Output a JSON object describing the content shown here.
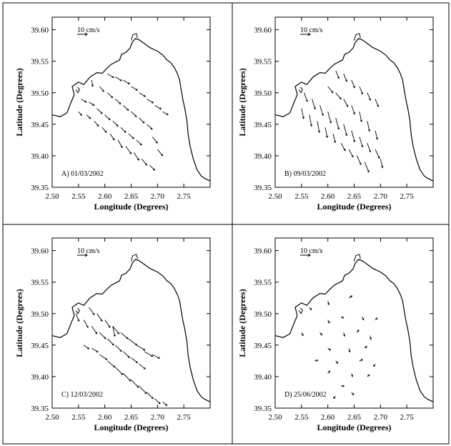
{
  "figure": {
    "panels": [
      {
        "label": "A) 01/03/2002"
      },
      {
        "label": "B) 09/03/2002"
      },
      {
        "label": "C) 12/03/2002"
      },
      {
        "label": "D) 25/06/2002"
      }
    ]
  },
  "chart_data": [
    {
      "type": "quiver",
      "panel_label": "A) 01/03/2002",
      "xlabel": "Longitude (Degrees)",
      "ylabel": "Latitude (Degrees)",
      "xlim": [
        2.5,
        2.8
      ],
      "ylim": [
        39.35,
        39.62
      ],
      "xticks": [
        "2.50",
        "2.55",
        "2.60",
        "2.65",
        "2.70",
        "2.75"
      ],
      "yticks": [
        "39.35",
        "39.40",
        "39.45",
        "39.50",
        "39.55",
        "39.60"
      ],
      "scale_label": "10 cm/s",
      "vectors": [
        {
          "x": 2.605,
          "y": 39.53,
          "u": 0.012,
          "v": -0.006
        },
        {
          "x": 2.62,
          "y": 39.525,
          "u": 0.012,
          "v": -0.006
        },
        {
          "x": 2.635,
          "y": 39.52,
          "u": 0.012,
          "v": -0.006
        },
        {
          "x": 2.65,
          "y": 39.51,
          "u": 0.012,
          "v": -0.006
        },
        {
          "x": 2.665,
          "y": 39.5,
          "u": 0.012,
          "v": -0.006
        },
        {
          "x": 2.68,
          "y": 39.49,
          "u": 0.012,
          "v": -0.006
        },
        {
          "x": 2.695,
          "y": 39.48,
          "u": 0.012,
          "v": -0.006
        },
        {
          "x": 2.71,
          "y": 39.47,
          "u": 0.01,
          "v": -0.005
        },
        {
          "x": 2.575,
          "y": 39.52,
          "u": 0.002,
          "v": -0.01
        },
        {
          "x": 2.59,
          "y": 39.51,
          "u": 0.008,
          "v": -0.008
        },
        {
          "x": 2.605,
          "y": 39.5,
          "u": 0.01,
          "v": -0.008
        },
        {
          "x": 2.62,
          "y": 39.49,
          "u": 0.01,
          "v": -0.008
        },
        {
          "x": 2.635,
          "y": 39.48,
          "u": 0.01,
          "v": -0.008
        },
        {
          "x": 2.65,
          "y": 39.47,
          "u": 0.01,
          "v": -0.008
        },
        {
          "x": 2.665,
          "y": 39.46,
          "u": 0.01,
          "v": -0.008
        },
        {
          "x": 2.68,
          "y": 39.45,
          "u": 0.01,
          "v": -0.008
        },
        {
          "x": 2.555,
          "y": 39.49,
          "u": 0.01,
          "v": -0.005
        },
        {
          "x": 2.57,
          "y": 39.485,
          "u": 0.01,
          "v": -0.005
        },
        {
          "x": 2.585,
          "y": 39.475,
          "u": 0.01,
          "v": -0.008
        },
        {
          "x": 2.6,
          "y": 39.465,
          "u": 0.01,
          "v": -0.008
        },
        {
          "x": 2.615,
          "y": 39.455,
          "u": 0.01,
          "v": -0.008
        },
        {
          "x": 2.63,
          "y": 39.445,
          "u": 0.01,
          "v": -0.008
        },
        {
          "x": 2.645,
          "y": 39.435,
          "u": 0.01,
          "v": -0.008
        },
        {
          "x": 2.66,
          "y": 39.425,
          "u": 0.01,
          "v": -0.008
        },
        {
          "x": 2.55,
          "y": 39.47,
          "u": 0.006,
          "v": -0.006
        },
        {
          "x": 2.565,
          "y": 39.465,
          "u": 0.008,
          "v": -0.006
        },
        {
          "x": 2.58,
          "y": 39.455,
          "u": 0.008,
          "v": -0.008
        },
        {
          "x": 2.595,
          "y": 39.445,
          "u": 0.008,
          "v": -0.008
        },
        {
          "x": 2.61,
          "y": 39.435,
          "u": 0.008,
          "v": -0.01
        },
        {
          "x": 2.625,
          "y": 39.425,
          "u": 0.008,
          "v": -0.012
        },
        {
          "x": 2.64,
          "y": 39.415,
          "u": 0.01,
          "v": -0.012
        },
        {
          "x": 2.655,
          "y": 39.405,
          "u": 0.01,
          "v": -0.012
        },
        {
          "x": 2.67,
          "y": 39.395,
          "u": 0.01,
          "v": -0.01
        },
        {
          "x": 2.685,
          "y": 39.385,
          "u": 0.01,
          "v": -0.008
        },
        {
          "x": 2.69,
          "y": 39.43,
          "u": 0.01,
          "v": -0.01
        },
        {
          "x": 2.7,
          "y": 39.41,
          "u": 0.01,
          "v": -0.01
        }
      ]
    },
    {
      "type": "quiver",
      "panel_label": "B) 09/03/2002",
      "xlabel": "Longitude (Degrees)",
      "ylabel": "Latitude (Degrees)",
      "xlim": [
        2.5,
        2.8
      ],
      "ylim": [
        39.35,
        39.62
      ],
      "xticks": [
        "2.50",
        "2.55",
        "2.60",
        "2.65",
        "2.70",
        "2.75"
      ],
      "yticks": [
        "39.35",
        "39.40",
        "39.45",
        "39.50",
        "39.55",
        "39.60"
      ],
      "scale_label": "10 cm/s",
      "vectors": [
        {
          "x": 2.615,
          "y": 39.535,
          "u": 0.006,
          "v": -0.012
        },
        {
          "x": 2.63,
          "y": 39.53,
          "u": 0.006,
          "v": -0.012
        },
        {
          "x": 2.645,
          "y": 39.52,
          "u": 0.006,
          "v": -0.012
        },
        {
          "x": 2.66,
          "y": 39.51,
          "u": 0.006,
          "v": -0.012
        },
        {
          "x": 2.675,
          "y": 39.5,
          "u": 0.006,
          "v": -0.012
        },
        {
          "x": 2.69,
          "y": 39.49,
          "u": 0.006,
          "v": -0.012
        },
        {
          "x": 2.6,
          "y": 39.51,
          "u": 0.01,
          "v": -0.01
        },
        {
          "x": 2.615,
          "y": 39.5,
          "u": 0.01,
          "v": -0.01
        },
        {
          "x": 2.63,
          "y": 39.49,
          "u": 0.008,
          "v": -0.012
        },
        {
          "x": 2.645,
          "y": 39.48,
          "u": 0.006,
          "v": -0.014
        },
        {
          "x": 2.66,
          "y": 39.47,
          "u": 0.004,
          "v": -0.016
        },
        {
          "x": 2.675,
          "y": 39.455,
          "u": 0.004,
          "v": -0.016
        },
        {
          "x": 2.69,
          "y": 39.44,
          "u": 0.004,
          "v": -0.014
        },
        {
          "x": 2.555,
          "y": 39.5,
          "u": 0.006,
          "v": -0.014
        },
        {
          "x": 2.57,
          "y": 39.49,
          "u": 0.006,
          "v": -0.016
        },
        {
          "x": 2.585,
          "y": 39.48,
          "u": 0.006,
          "v": -0.016
        },
        {
          "x": 2.6,
          "y": 39.47,
          "u": 0.006,
          "v": -0.018
        },
        {
          "x": 2.615,
          "y": 39.46,
          "u": 0.006,
          "v": -0.018
        },
        {
          "x": 2.63,
          "y": 39.45,
          "u": 0.006,
          "v": -0.018
        },
        {
          "x": 2.645,
          "y": 39.44,
          "u": 0.006,
          "v": -0.018
        },
        {
          "x": 2.66,
          "y": 39.43,
          "u": 0.006,
          "v": -0.016
        },
        {
          "x": 2.675,
          "y": 39.42,
          "u": 0.006,
          "v": -0.014
        },
        {
          "x": 2.55,
          "y": 39.475,
          "u": 0.004,
          "v": -0.016
        },
        {
          "x": 2.565,
          "y": 39.465,
          "u": 0.004,
          "v": -0.018
        },
        {
          "x": 2.58,
          "y": 39.455,
          "u": 0.004,
          "v": -0.018
        },
        {
          "x": 2.595,
          "y": 39.445,
          "u": 0.004,
          "v": -0.016
        },
        {
          "x": 2.61,
          "y": 39.435,
          "u": 0.004,
          "v": -0.014
        },
        {
          "x": 2.625,
          "y": 39.42,
          "u": 0.008,
          "v": -0.012
        },
        {
          "x": 2.64,
          "y": 39.41,
          "u": 0.008,
          "v": -0.012
        },
        {
          "x": 2.655,
          "y": 39.4,
          "u": 0.008,
          "v": -0.014
        },
        {
          "x": 2.67,
          "y": 39.39,
          "u": 0.008,
          "v": -0.016
        },
        {
          "x": 2.69,
          "y": 39.41,
          "u": 0.008,
          "v": -0.014
        },
        {
          "x": 2.7,
          "y": 39.395,
          "u": 0.004,
          "v": -0.014
        }
      ]
    },
    {
      "type": "quiver",
      "panel_label": "C) 12/03/2002",
      "xlabel": "Longitude (Degrees)",
      "ylabel": "Latitude (Degrees)",
      "xlim": [
        2.5,
        2.8
      ],
      "ylim": [
        39.35,
        39.62
      ],
      "xticks": [
        "2.50",
        "2.55",
        "2.60",
        "2.65",
        "2.70",
        "2.75"
      ],
      "yticks": [
        "39.35",
        "39.40",
        "39.45",
        "39.50",
        "39.55",
        "39.60"
      ],
      "scale_label": "10 cm/s",
      "vectors": [
        {
          "x": 2.57,
          "y": 39.51,
          "u": 0.01,
          "v": -0.012
        },
        {
          "x": 2.585,
          "y": 39.5,
          "u": 0.01,
          "v": -0.012
        },
        {
          "x": 2.6,
          "y": 39.49,
          "u": 0.01,
          "v": -0.012
        },
        {
          "x": 2.615,
          "y": 39.48,
          "u": 0.012,
          "v": -0.012
        },
        {
          "x": 2.63,
          "y": 39.47,
          "u": 0.014,
          "v": -0.01
        },
        {
          "x": 2.645,
          "y": 39.46,
          "u": 0.016,
          "v": -0.01
        },
        {
          "x": 2.66,
          "y": 39.45,
          "u": 0.016,
          "v": -0.008
        },
        {
          "x": 2.675,
          "y": 39.44,
          "u": 0.016,
          "v": -0.008
        },
        {
          "x": 2.69,
          "y": 39.435,
          "u": 0.014,
          "v": -0.006
        },
        {
          "x": 2.545,
          "y": 39.5,
          "u": 0.006,
          "v": -0.012
        },
        {
          "x": 2.56,
          "y": 39.49,
          "u": 0.008,
          "v": -0.012
        },
        {
          "x": 2.575,
          "y": 39.48,
          "u": 0.01,
          "v": -0.012
        },
        {
          "x": 2.59,
          "y": 39.47,
          "u": 0.012,
          "v": -0.01
        },
        {
          "x": 2.605,
          "y": 39.46,
          "u": 0.012,
          "v": -0.01
        },
        {
          "x": 2.62,
          "y": 39.45,
          "u": 0.012,
          "v": -0.01
        },
        {
          "x": 2.635,
          "y": 39.44,
          "u": 0.012,
          "v": -0.01
        },
        {
          "x": 2.65,
          "y": 39.43,
          "u": 0.012,
          "v": -0.008
        },
        {
          "x": 2.665,
          "y": 39.42,
          "u": 0.012,
          "v": -0.008
        },
        {
          "x": 2.56,
          "y": 39.45,
          "u": 0.01,
          "v": -0.006
        },
        {
          "x": 2.575,
          "y": 39.445,
          "u": 0.012,
          "v": -0.006
        },
        {
          "x": 2.59,
          "y": 39.435,
          "u": 0.014,
          "v": -0.008
        },
        {
          "x": 2.605,
          "y": 39.425,
          "u": 0.014,
          "v": -0.01
        },
        {
          "x": 2.62,
          "y": 39.415,
          "u": 0.014,
          "v": -0.012
        },
        {
          "x": 2.635,
          "y": 39.405,
          "u": 0.014,
          "v": -0.012
        },
        {
          "x": 2.65,
          "y": 39.395,
          "u": 0.014,
          "v": -0.012
        },
        {
          "x": 2.665,
          "y": 39.385,
          "u": 0.014,
          "v": -0.012
        },
        {
          "x": 2.68,
          "y": 39.375,
          "u": 0.012,
          "v": -0.01
        },
        {
          "x": 2.695,
          "y": 39.365,
          "u": 0.01,
          "v": -0.008
        },
        {
          "x": 2.71,
          "y": 39.36,
          "u": 0.008,
          "v": -0.006
        },
        {
          "x": 2.615,
          "y": 39.48,
          "u": 0.004,
          "v": -0.016
        }
      ]
    },
    {
      "type": "quiver",
      "panel_label": "D) 25/06/2002",
      "xlabel": "Longitude (Degrees)",
      "ylabel": "Latitude (Degrees)",
      "xlim": [
        2.5,
        2.8
      ],
      "ylim": [
        39.35,
        39.62
      ],
      "xticks": [
        "2.50",
        "2.55",
        "2.60",
        "2.65",
        "2.70",
        "2.75"
      ],
      "yticks": [
        "39.35",
        "39.40",
        "39.45",
        "39.50",
        "39.55",
        "39.60"
      ],
      "scale_label": "10 cm/s",
      "vectors": [
        {
          "x": 2.565,
          "y": 39.51,
          "u": 0.004,
          "v": -0.004
        },
        {
          "x": 2.6,
          "y": 39.52,
          "u": 0.002,
          "v": -0.006
        },
        {
          "x": 2.64,
          "y": 39.525,
          "u": 0.006,
          "v": 0.003
        },
        {
          "x": 2.6,
          "y": 39.49,
          "u": 0.003,
          "v": -0.005
        },
        {
          "x": 2.625,
          "y": 39.495,
          "u": 0.005,
          "v": -0.002
        },
        {
          "x": 2.665,
          "y": 39.495,
          "u": 0.003,
          "v": -0.005
        },
        {
          "x": 2.69,
          "y": 39.49,
          "u": 0.004,
          "v": 0.003
        },
        {
          "x": 2.55,
          "y": 39.47,
          "u": 0.003,
          "v": -0.005
        },
        {
          "x": 2.585,
          "y": 39.47,
          "u": 0.004,
          "v": -0.004
        },
        {
          "x": 2.63,
          "y": 39.47,
          "u": 0.002,
          "v": -0.006
        },
        {
          "x": 2.655,
          "y": 39.47,
          "u": 0.004,
          "v": 0.004
        },
        {
          "x": 2.68,
          "y": 39.465,
          "u": 0.002,
          "v": -0.006
        },
        {
          "x": 2.6,
          "y": 39.445,
          "u": 0.005,
          "v": -0.003
        },
        {
          "x": 2.64,
          "y": 39.445,
          "u": 0.002,
          "v": -0.006
        },
        {
          "x": 2.67,
          "y": 39.445,
          "u": 0.004,
          "v": 0.003
        },
        {
          "x": 2.575,
          "y": 39.425,
          "u": 0.006,
          "v": 0.001
        },
        {
          "x": 2.615,
          "y": 39.425,
          "u": 0.004,
          "v": -0.004
        },
        {
          "x": 2.66,
          "y": 39.425,
          "u": 0.006,
          "v": 0.002
        },
        {
          "x": 2.69,
          "y": 39.42,
          "u": -0.003,
          "v": -0.004
        },
        {
          "x": 2.6,
          "y": 39.405,
          "u": 0.004,
          "v": 0.004
        },
        {
          "x": 2.645,
          "y": 39.405,
          "u": 0.002,
          "v": -0.005
        },
        {
          "x": 2.675,
          "y": 39.4,
          "u": 0.004,
          "v": 0.003
        },
        {
          "x": 2.625,
          "y": 39.385,
          "u": 0.006,
          "v": 0.0
        },
        {
          "x": 2.645,
          "y": 39.375,
          "u": 0.004,
          "v": -0.004
        },
        {
          "x": 2.61,
          "y": 39.365,
          "u": 0.004,
          "v": 0.003
        }
      ]
    }
  ]
}
